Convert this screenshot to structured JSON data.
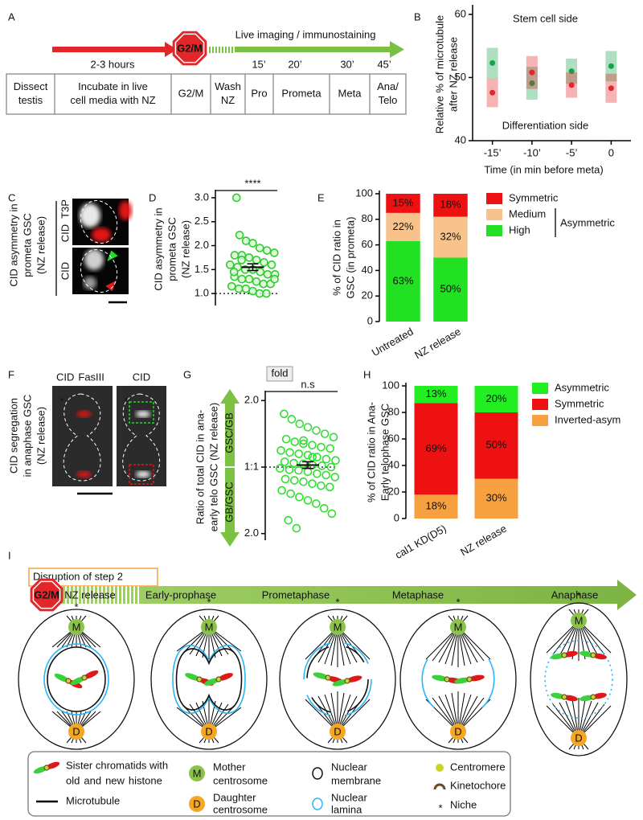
{
  "panel_A": {
    "label": "A",
    "duration": "2-3 hours",
    "checkpoint": "G2/M",
    "imaging": "Live imaging / immunostaining",
    "times": [
      "15’",
      "20’",
      "30’",
      "45’"
    ],
    "steps": [
      [
        "Dissect",
        "testis"
      ],
      [
        "Incubate in live",
        "cell media with NZ"
      ],
      [
        "G2/M"
      ],
      [
        "Wash",
        "NZ"
      ],
      [
        "Pro"
      ],
      [
        "Prometa"
      ],
      [
        "Meta"
      ],
      [
        "Ana/",
        "Telo"
      ]
    ]
  },
  "panel_C": {
    "label": "C",
    "title": [
      "CID asymmetry in",
      "prometa GSC",
      "(NZ release)"
    ],
    "channel_top": [
      "CID",
      "T3P"
    ],
    "channel_bottom": "CID"
  },
  "panel_F": {
    "label": "F",
    "title": [
      "CID segregation",
      "in anaphase GSC",
      "(NZ release)"
    ],
    "left_channels": [
      "CID",
      "FasIII"
    ],
    "right_channel": "CID",
    "niche_mark": "*"
  },
  "panel_I": {
    "label": "I",
    "heading": "Disruption of step 2",
    "checkpoint": "G2/M",
    "release": "NZ release",
    "stages": [
      "Early-prophase",
      "Prometaphase",
      "Metaphase",
      "Anaphase"
    ],
    "mother": "M",
    "daughter": "D",
    "niche": "*",
    "legend": {
      "chromatids": [
        "Sister chromatids with",
        "old",
        "and",
        "new",
        "histone"
      ],
      "microtubule": "Microtubule",
      "mother": [
        "Mother",
        "centrosome"
      ],
      "daughter": [
        "Daughter",
        "centrosome"
      ],
      "membrane": [
        "Nuclear",
        "membrane"
      ],
      "lamina": [
        "Nuclear",
        "lamina"
      ],
      "centromere": "Centromere",
      "kinetochore": "Kinetochore",
      "niche": "Niche"
    }
  },
  "chart_data": [
    {
      "panel": "B",
      "type": "dot",
      "categories": [
        "-15’",
        "-10’",
        "-5’",
        "0"
      ],
      "ylim": [
        40,
        61
      ],
      "yticks": [
        40,
        50,
        60
      ],
      "y_label": [
        "Relative % of microtubule",
        "after NZ release"
      ],
      "x_label": "Time (in min before meta)",
      "series": [
        {
          "name": "Stem cell side",
          "color": "#17a34a",
          "values": [
            52.3,
            49.1,
            51.0,
            51.8
          ],
          "errors": [
            2.4,
            2.6,
            2.0,
            2.4
          ]
        },
        {
          "name": "Differentiation side",
          "color": "#e3262a",
          "values": [
            47.6,
            50.8,
            48.8,
            48.3
          ],
          "errors": [
            2.3,
            2.6,
            2.0,
            2.3
          ]
        }
      ]
    },
    {
      "panel": "D",
      "type": "strip",
      "y_label": [
        "CID asymmetry in",
        "prometa GSC",
        "(NZ release)"
      ],
      "ylim": [
        0.75,
        3.1
      ],
      "yticks": [
        {
          "value": 1,
          "label": "1.0"
        },
        1.5,
        {
          "value": 2,
          "label": "2.0"
        },
        2.5,
        {
          "value": 3,
          "label": "3.0"
        }
      ],
      "values": [
        3.0,
        2.22,
        2.1,
        2.05,
        1.95,
        1.9,
        1.85,
        1.8,
        1.8,
        1.75,
        1.7,
        1.65,
        1.6,
        1.6,
        1.55,
        1.5,
        1.5,
        1.45,
        1.4,
        1.4,
        1.35,
        1.3,
        1.3,
        1.25,
        1.2,
        1.2,
        1.15,
        1.1,
        1.1,
        1.05,
        1.0,
        1.0,
        1.3,
        1.45,
        1.7
      ],
      "mean": 1.55,
      "sem": 0.07,
      "reference": 1,
      "significance": "****",
      "color": "#2ecc2e"
    },
    {
      "panel": "E",
      "type": "stacked-bar",
      "categories": [
        "Untreated",
        "NZ release"
      ],
      "ylim": [
        0,
        100
      ],
      "yticks": [
        0,
        20,
        40,
        60,
        80,
        100
      ],
      "y_label": [
        "% of CID ratio in",
        "GSC (in prometa)"
      ],
      "legend_group": "Asymmetric",
      "series": [
        {
          "name": "High",
          "color": "#22e022",
          "values": [
            63,
            50
          ],
          "value_labels": [
            "63%",
            "50%"
          ]
        },
        {
          "name": "Medium",
          "color": "#f8c28c",
          "values": [
            22,
            32
          ],
          "value_labels": [
            "22%",
            "32%"
          ]
        },
        {
          "name": "Symmetric",
          "color": "#ee1111",
          "values": [
            15,
            18
          ],
          "value_labels": [
            "15%",
            "18%"
          ]
        }
      ]
    },
    {
      "panel": "G",
      "type": "strip",
      "y_label": [
        "Ratio of total CID in ana-",
        "early telo GSC (NZ release)"
      ],
      "unit": "fold",
      "ylim": [
        -1.1,
        1.1
      ],
      "yticks": [
        {
          "value": 1,
          "label": "2.0"
        },
        {
          "value": 0,
          "label": "1:1"
        },
        {
          "value": -1,
          "label": "2.0"
        }
      ],
      "directions": [
        "GSC/GB",
        "GB/GSC"
      ],
      "values": [
        0.8,
        0.72,
        0.65,
        0.6,
        0.55,
        0.5,
        0.45,
        0.42,
        0.38,
        0.35,
        0.33,
        0.3,
        0.28,
        0.25,
        0.22,
        0.2,
        0.18,
        0.15,
        0.12,
        0.1,
        0.08,
        0.06,
        0.05,
        0.03,
        0.02,
        0,
        -0.02,
        -0.04,
        -0.05,
        -0.07,
        -0.1,
        -0.12,
        -0.15,
        -0.18,
        -0.2,
        -0.22,
        -0.25,
        -0.28,
        -0.3,
        -0.35,
        -0.4,
        -0.45,
        -0.5,
        -0.55,
        -0.62,
        -0.7,
        -0.8,
        -0.92,
        0.4,
        0.15
      ],
      "mean": 0.03,
      "sem": 0.05,
      "reference": 0,
      "significance": "n.s",
      "color": "#33dd33"
    },
    {
      "panel": "H",
      "type": "stacked-bar",
      "categories": [
        "cal1 KD(D5)",
        "NZ release"
      ],
      "ylim": [
        0,
        100
      ],
      "yticks": [
        0,
        20,
        40,
        60,
        80,
        100
      ],
      "y_label": [
        "% of CID ratio in Ana-",
        "Early telophase GSC"
      ],
      "series": [
        {
          "name": "Inverted-asym",
          "color": "#f7a040",
          "values": [
            18,
            30
          ],
          "value_labels": [
            "18%",
            "30%"
          ]
        },
        {
          "name": "Symmetric",
          "color": "#ee1111",
          "values": [
            69,
            50
          ],
          "value_labels": [
            "69%",
            "50%"
          ]
        },
        {
          "name": "Asymmetric",
          "color": "#22ee22",
          "values": [
            13,
            20
          ],
          "value_labels": [
            "13%",
            "20%"
          ]
        }
      ]
    }
  ]
}
